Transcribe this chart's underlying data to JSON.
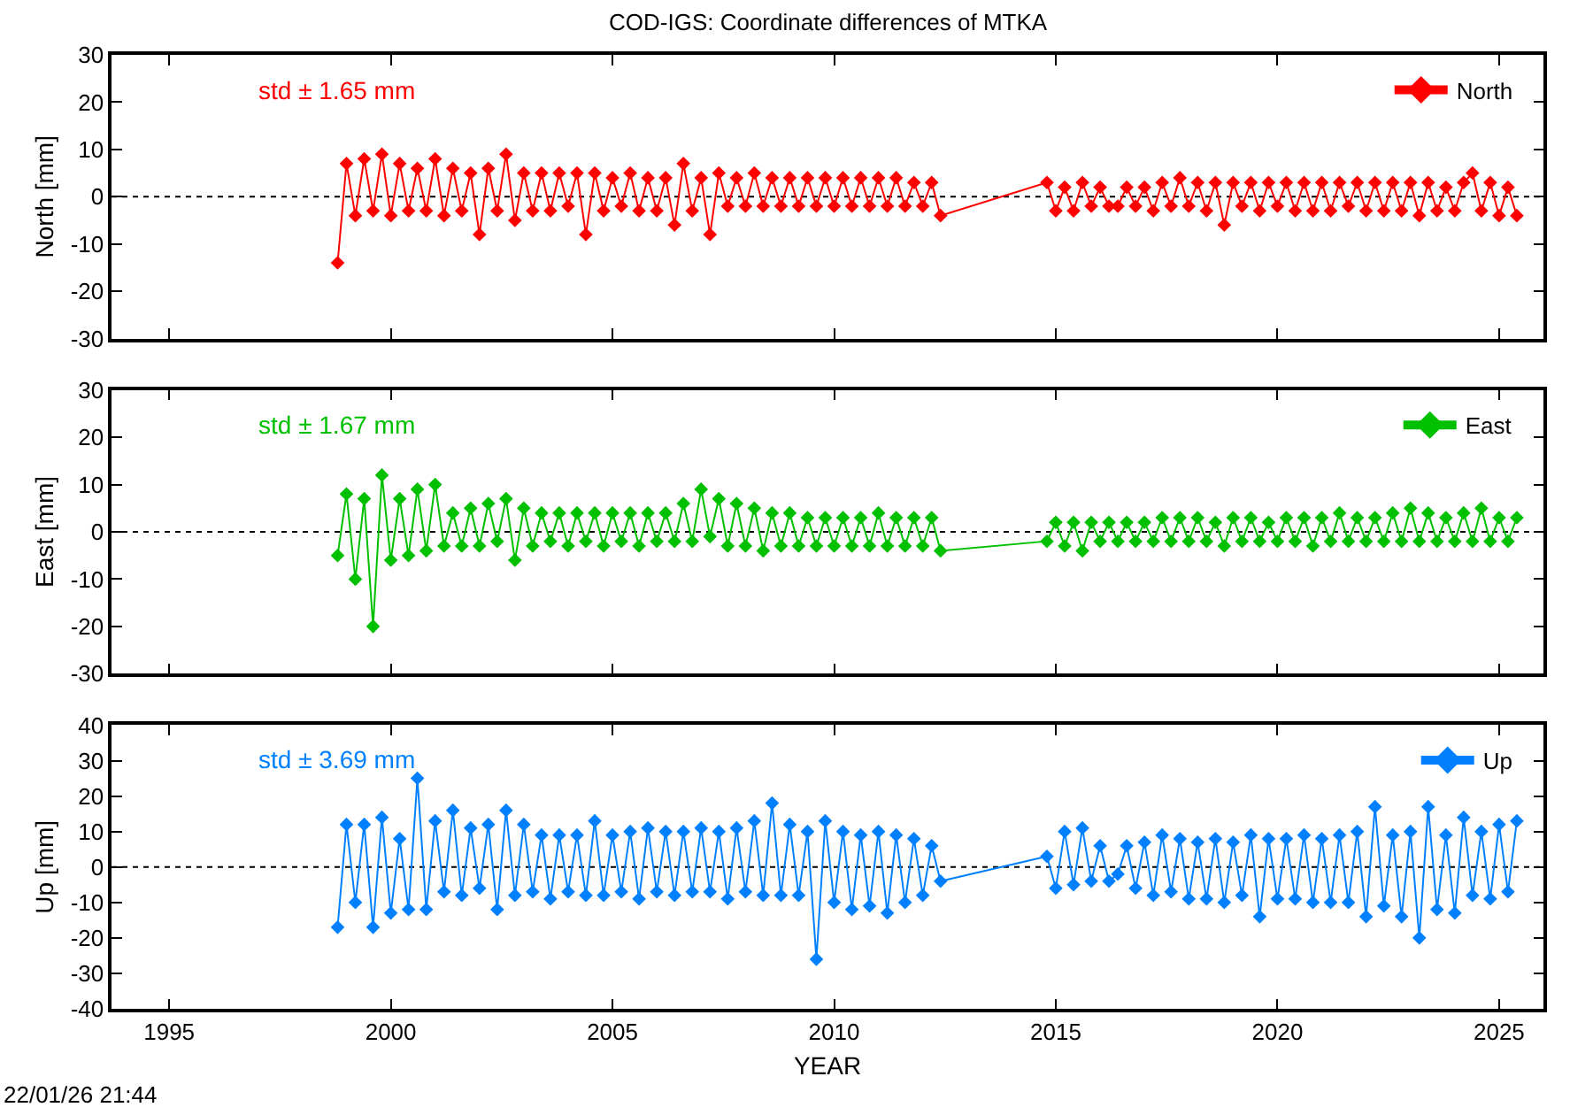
{
  "chart_data": [
    {
      "type": "line",
      "title": "COD-IGS: Coordinate differences of MTKA",
      "ylabel": "North [mm]",
      "annotations": [
        "std ± 1.65 mm"
      ],
      "legend": "top right",
      "marker": "diamond",
      "line_style": "solid",
      "grid": false,
      "tick_labels": "y",
      "xlim": [
        1993.7,
        2026
      ],
      "xticks": [
        1995,
        2000,
        2005,
        2010,
        2015,
        2020,
        2025
      ],
      "ylim": [
        -30,
        30
      ],
      "yticks": [
        -30,
        -20,
        -10,
        0,
        10,
        20,
        30
      ],
      "ref_lines": [
        {
          "axis": "y",
          "value": 0,
          "line_style": "dotted",
          "color": "#000000"
        }
      ],
      "x": [
        1998.8,
        1999,
        1999.2,
        1999.4,
        1999.6,
        1999.8,
        2000,
        2000.2,
        2000.4,
        2000.6,
        2000.8,
        2001,
        2001.2,
        2001.4,
        2001.6,
        2001.8,
        2002,
        2002.2,
        2002.4,
        2002.6,
        2002.8,
        2003,
        2003.2,
        2003.4,
        2003.6,
        2003.8,
        2004,
        2004.2,
        2004.4,
        2004.6,
        2004.8,
        2005,
        2005.2,
        2005.4,
        2005.6,
        2005.8,
        2006,
        2006.2,
        2006.4,
        2006.6,
        2006.8,
        2007,
        2007.2,
        2007.4,
        2007.6,
        2007.8,
        2008,
        2008.2,
        2008.4,
        2008.6,
        2008.8,
        2009,
        2009.2,
        2009.4,
        2009.6,
        2009.8,
        2010,
        2010.2,
        2010.4,
        2010.6,
        2010.8,
        2011,
        2011.2,
        2011.4,
        2011.6,
        2011.8,
        2012,
        2012.2,
        2012.4,
        2014.8,
        2015,
        2015.2,
        2015.4,
        2015.6,
        2015.8,
        2016,
        2016.2,
        2016.4,
        2016.6,
        2016.8,
        2017,
        2017.2,
        2017.4,
        2017.6,
        2017.8,
        2018,
        2018.2,
        2018.4,
        2018.6,
        2018.8,
        2019,
        2019.2,
        2019.4,
        2019.6,
        2019.8,
        2020,
        2020.2,
        2020.4,
        2020.6,
        2020.8,
        2021,
        2021.2,
        2021.4,
        2021.6,
        2021.8,
        2022,
        2022.2,
        2022.4,
        2022.6,
        2022.8,
        2023,
        2023.2,
        2023.4,
        2023.6,
        2023.8,
        2024,
        2024.2,
        2024.4,
        2024.6,
        2024.8,
        2025,
        2025.2,
        2025.4
      ],
      "series": [
        {
          "name": "North",
          "color": "#ff0000",
          "values": [
            -14,
            7,
            -4,
            8,
            -3,
            9,
            -4,
            7,
            -3,
            6,
            -3,
            8,
            -4,
            6,
            -3,
            5,
            -8,
            6,
            -3,
            9,
            -5,
            5,
            -3,
            5,
            -3,
            5,
            -2,
            5,
            -8,
            5,
            -3,
            4,
            -2,
            5,
            -3,
            4,
            -3,
            4,
            -6,
            7,
            -3,
            4,
            -8,
            5,
            -2,
            4,
            -2,
            5,
            -2,
            4,
            -2,
            4,
            -2,
            4,
            -2,
            4,
            -2,
            4,
            -2,
            4,
            -2,
            4,
            -2,
            4,
            -2,
            3,
            -2,
            3,
            -4,
            3,
            -3,
            2,
            -3,
            3,
            -2,
            2,
            -2,
            -2,
            2,
            -2,
            2,
            -3,
            3,
            -2,
            4,
            -2,
            3,
            -3,
            3,
            -6,
            3,
            -2,
            3,
            -3,
            3,
            -2,
            3,
            -3,
            3,
            -3,
            3,
            -3,
            3,
            -2,
            3,
            -3,
            3,
            -3,
            3,
            -3,
            3,
            -4,
            3,
            -3,
            2,
            -3,
            3,
            5,
            -3,
            3,
            -4,
            2,
            -4
          ]
        }
      ]
    },
    {
      "type": "line",
      "ylabel": "East [mm]",
      "annotations": [
        "std ± 1.67 mm"
      ],
      "legend": "top right",
      "marker": "diamond",
      "line_style": "solid",
      "grid": false,
      "tick_labels": "y",
      "xlim": [
        1993.7,
        2026
      ],
      "xticks": [
        1995,
        2000,
        2005,
        2010,
        2015,
        2020,
        2025
      ],
      "ylim": [
        -30,
        30
      ],
      "yticks": [
        -30,
        -20,
        -10,
        0,
        10,
        20,
        30
      ],
      "ref_lines": [
        {
          "axis": "y",
          "value": 0,
          "line_style": "dotted",
          "color": "#000000"
        }
      ],
      "x": [
        1998.8,
        1999,
        1999.2,
        1999.4,
        1999.6,
        1999.8,
        2000,
        2000.2,
        2000.4,
        2000.6,
        2000.8,
        2001,
        2001.2,
        2001.4,
        2001.6,
        2001.8,
        2002,
        2002.2,
        2002.4,
        2002.6,
        2002.8,
        2003,
        2003.2,
        2003.4,
        2003.6,
        2003.8,
        2004,
        2004.2,
        2004.4,
        2004.6,
        2004.8,
        2005,
        2005.2,
        2005.4,
        2005.6,
        2005.8,
        2006,
        2006.2,
        2006.4,
        2006.6,
        2006.8,
        2007,
        2007.2,
        2007.4,
        2007.6,
        2007.8,
        2008,
        2008.2,
        2008.4,
        2008.6,
        2008.8,
        2009,
        2009.2,
        2009.4,
        2009.6,
        2009.8,
        2010,
        2010.2,
        2010.4,
        2010.6,
        2010.8,
        2011,
        2011.2,
        2011.4,
        2011.6,
        2011.8,
        2012,
        2012.2,
        2012.4,
        2014.8,
        2015,
        2015.2,
        2015.4,
        2015.6,
        2015.8,
        2016,
        2016.2,
        2016.4,
        2016.6,
        2016.8,
        2017,
        2017.2,
        2017.4,
        2017.6,
        2017.8,
        2018,
        2018.2,
        2018.4,
        2018.6,
        2018.8,
        2019,
        2019.2,
        2019.4,
        2019.6,
        2019.8,
        2020,
        2020.2,
        2020.4,
        2020.6,
        2020.8,
        2021,
        2021.2,
        2021.4,
        2021.6,
        2021.8,
        2022,
        2022.2,
        2022.4,
        2022.6,
        2022.8,
        2023,
        2023.2,
        2023.4,
        2023.6,
        2023.8,
        2024,
        2024.2,
        2024.4,
        2024.6,
        2024.8,
        2025,
        2025.2,
        2025.4
      ],
      "series": [
        {
          "name": "East",
          "color": "#00c000",
          "values": [
            -5,
            8,
            -10,
            7,
            -20,
            12,
            -6,
            7,
            -5,
            9,
            -4,
            10,
            -3,
            4,
            -3,
            5,
            -3,
            6,
            -2,
            7,
            -6,
            5,
            -3,
            4,
            -2,
            4,
            -3,
            4,
            -2,
            4,
            -3,
            4,
            -2,
            4,
            -3,
            4,
            -2,
            4,
            -2,
            6,
            -2,
            9,
            -1,
            7,
            -3,
            6,
            -3,
            5,
            -4,
            4,
            -3,
            4,
            -3,
            3,
            -3,
            3,
            -3,
            3,
            -3,
            3,
            -3,
            4,
            -3,
            3,
            -3,
            3,
            -3,
            3,
            -4,
            -2,
            2,
            -3,
            2,
            -4,
            2,
            -2,
            2,
            -2,
            2,
            -2,
            2,
            -2,
            3,
            -2,
            3,
            -2,
            3,
            -2,
            2,
            -3,
            3,
            -2,
            3,
            -2,
            2,
            -2,
            3,
            -2,
            3,
            -3,
            3,
            -2,
            4,
            -2,
            3,
            -2,
            3,
            -2,
            4,
            -2,
            5,
            -2,
            4,
            -2,
            3,
            -2,
            4,
            -2,
            5,
            -2,
            3,
            -2,
            3
          ]
        }
      ]
    },
    {
      "type": "line",
      "ylabel": "Up [mm]",
      "xlabel": "YEAR",
      "annotations": [
        "std ± 3.69 mm",
        "22/01/26 21:44"
      ],
      "legend": "top right",
      "marker": "diamond",
      "line_style": "solid",
      "grid": false,
      "xlim": [
        1993.7,
        2026
      ],
      "xticks": [
        1995,
        2000,
        2005,
        2010,
        2015,
        2020,
        2025
      ],
      "ylim": [
        -40,
        40
      ],
      "yticks": [
        -40,
        -30,
        -20,
        -10,
        0,
        10,
        20,
        30,
        40
      ],
      "ref_lines": [
        {
          "axis": "y",
          "value": 0,
          "line_style": "dotted",
          "color": "#000000"
        }
      ],
      "x": [
        1998.8,
        1999,
        1999.2,
        1999.4,
        1999.6,
        1999.8,
        2000,
        2000.2,
        2000.4,
        2000.6,
        2000.8,
        2001,
        2001.2,
        2001.4,
        2001.6,
        2001.8,
        2002,
        2002.2,
        2002.4,
        2002.6,
        2002.8,
        2003,
        2003.2,
        2003.4,
        2003.6,
        2003.8,
        2004,
        2004.2,
        2004.4,
        2004.6,
        2004.8,
        2005,
        2005.2,
        2005.4,
        2005.6,
        2005.8,
        2006,
        2006.2,
        2006.4,
        2006.6,
        2006.8,
        2007,
        2007.2,
        2007.4,
        2007.6,
        2007.8,
        2008,
        2008.2,
        2008.4,
        2008.6,
        2008.8,
        2009,
        2009.2,
        2009.4,
        2009.6,
        2009.8,
        2010,
        2010.2,
        2010.4,
        2010.6,
        2010.8,
        2011,
        2011.2,
        2011.4,
        2011.6,
        2011.8,
        2012,
        2012.2,
        2012.4,
        2014.8,
        2015,
        2015.2,
        2015.4,
        2015.6,
        2015.8,
        2016,
        2016.2,
        2016.4,
        2016.6,
        2016.8,
        2017,
        2017.2,
        2017.4,
        2017.6,
        2017.8,
        2018,
        2018.2,
        2018.4,
        2018.6,
        2018.8,
        2019,
        2019.2,
        2019.4,
        2019.6,
        2019.8,
        2020,
        2020.2,
        2020.4,
        2020.6,
        2020.8,
        2021,
        2021.2,
        2021.4,
        2021.6,
        2021.8,
        2022,
        2022.2,
        2022.4,
        2022.6,
        2022.8,
        2023,
        2023.2,
        2023.4,
        2023.6,
        2023.8,
        2024,
        2024.2,
        2024.4,
        2024.6,
        2024.8,
        2025,
        2025.2,
        2025.4
      ],
      "series": [
        {
          "name": "Up",
          "color": "#0080ff",
          "values": [
            -17,
            12,
            -10,
            12,
            -17,
            14,
            -13,
            8,
            -12,
            25,
            -12,
            13,
            -7,
            16,
            -8,
            11,
            -6,
            12,
            -12,
            16,
            -8,
            12,
            -7,
            9,
            -9,
            9,
            -7,
            9,
            -8,
            13,
            -8,
            9,
            -7,
            10,
            -9,
            11,
            -7,
            10,
            -8,
            10,
            -7,
            11,
            -7,
            10,
            -9,
            11,
            -7,
            13,
            -8,
            18,
            -8,
            12,
            -8,
            10,
            -26,
            13,
            -10,
            10,
            -12,
            9,
            -11,
            10,
            -13,
            9,
            -10,
            8,
            -8,
            6,
            -4,
            3,
            -6,
            10,
            -5,
            11,
            -4,
            6,
            -4,
            -2,
            6,
            -6,
            7,
            -8,
            9,
            -7,
            8,
            -9,
            7,
            -9,
            8,
            -10,
            7,
            -8,
            9,
            -14,
            8,
            -9,
            8,
            -9,
            9,
            -10,
            8,
            -10,
            9,
            -10,
            10,
            -14,
            17,
            -11,
            9,
            -14,
            10,
            -20,
            17,
            -12,
            9,
            -13,
            14,
            -8,
            10,
            -9,
            12,
            -7,
            13
          ]
        }
      ]
    }
  ]
}
